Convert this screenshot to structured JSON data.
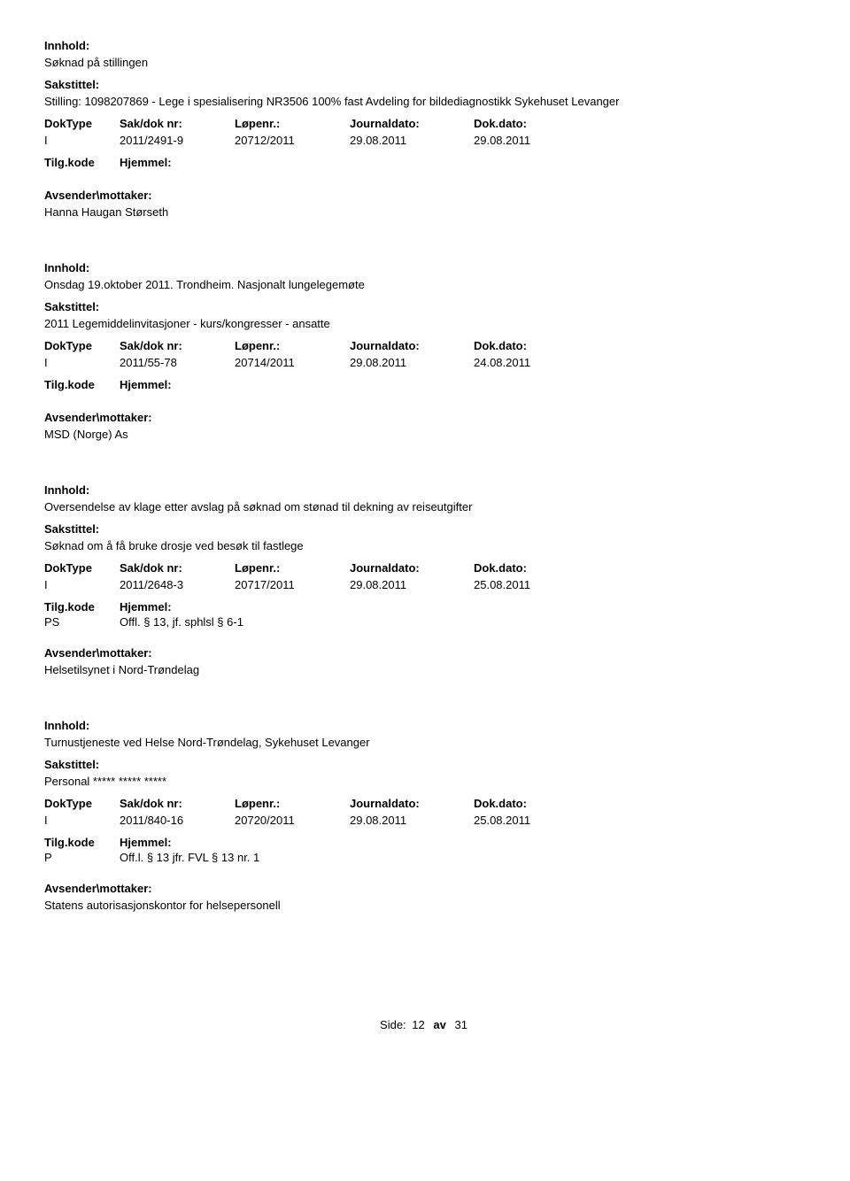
{
  "labels": {
    "innhold": "Innhold:",
    "sakstittel": "Sakstittel:",
    "doktype": "DokType",
    "sakdok": "Sak/dok nr:",
    "lopenr": "Løpenr.:",
    "journaldato": "Journaldato:",
    "dokdato": "Dok.dato:",
    "tilgkode": "Tilg.kode",
    "hjemmel": "Hjemmel:",
    "avsender": "Avsender\\mottaker:"
  },
  "entries": [
    {
      "innhold": "Søknad på stillingen",
      "sakstittel": "Stilling: 1098207869 - Lege i spesialisering NR3506 100% fast Avdeling for bildediagnostikk Sykehuset Levanger",
      "doktype": "I",
      "sakdok": "2011/2491-9",
      "lopenr": "20712/2011",
      "journaldato": "29.08.2011",
      "dokdato": "29.08.2011",
      "tilgkode": "",
      "hjemmel": "",
      "avsender": "Hanna Haugan Størseth"
    },
    {
      "innhold": "Onsdag 19.oktober 2011. Trondheim.    Nasjonalt lungelegemøte",
      "sakstittel": "2011 Legemiddelinvitasjoner -  kurs/kongresser - ansatte",
      "doktype": "I",
      "sakdok": "2011/55-78",
      "lopenr": "20714/2011",
      "journaldato": "29.08.2011",
      "dokdato": "24.08.2011",
      "tilgkode": "",
      "hjemmel": "",
      "avsender": "MSD (Norge) As"
    },
    {
      "innhold": "Oversendelse av klage etter avslag på søknad om stønad til dekning av reiseutgifter",
      "sakstittel": "Søknad om å få bruke drosje ved besøk til fastlege",
      "doktype": "I",
      "sakdok": "2011/2648-3",
      "lopenr": "20717/2011",
      "journaldato": "29.08.2011",
      "dokdato": "25.08.2011",
      "tilgkode": "PS",
      "hjemmel": "Offl. § 13, jf. sphlsl § 6-1",
      "avsender": "Helsetilsynet i Nord-Trøndelag"
    },
    {
      "innhold": "Turnustjeneste ved Helse Nord-Trøndelag, Sykehuset Levanger",
      "sakstittel": "Personal ***** ***** *****",
      "doktype": "I",
      "sakdok": "2011/840-16",
      "lopenr": "20720/2011",
      "journaldato": "29.08.2011",
      "dokdato": "25.08.2011",
      "tilgkode": "P",
      "hjemmel": "Off.l. § 13 jfr. FVL § 13 nr. 1",
      "avsender": "Statens autorisasjonskontor for helsepersonell"
    }
  ],
  "footer": {
    "label": "Side:",
    "page": "12",
    "av": "av",
    "total": "31"
  }
}
